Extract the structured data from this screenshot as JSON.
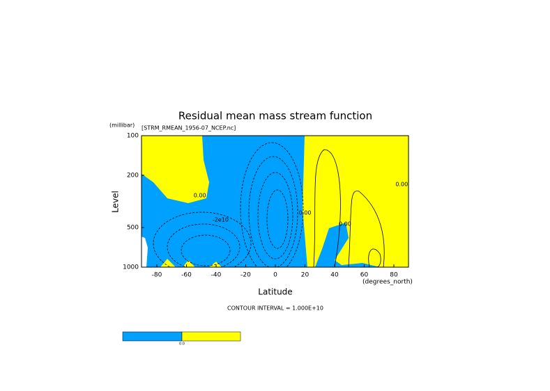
{
  "chart_data": {
    "type": "contour",
    "title": "Residual mean mass stream function",
    "subtitle": "[STRM_RMEAN_1956-07_NCEP.nc]",
    "x_label": "Latitude",
    "x_unit": "(degrees_north)",
    "y_label": "Level",
    "y_unit": "(millibar)",
    "xlim": [
      -90,
      90
    ],
    "xticks": [
      -80,
      -60,
      -40,
      -20,
      0,
      20,
      40,
      60,
      80
    ],
    "ylim": [
      1000,
      100
    ],
    "yticks": [
      100,
      200,
      500,
      1000
    ],
    "log_y": true,
    "note": "CONTOUR INTERVAL = 1.000E+10",
    "negative_color": "#00a0ff",
    "positive_color": "#ffff00",
    "colorbar_label": "0.0",
    "contour_labels": [
      {
        "text": "0.00",
        "x": -51,
        "y": 285
      },
      {
        "text": "-2e10",
        "x": -37,
        "y": 437
      },
      {
        "text": "0.00",
        "x": 20,
        "y": 386
      },
      {
        "text": "0.00",
        "x": 47,
        "y": 470
      },
      {
        "text": "0.00",
        "x": 90,
        "y": 235
      }
    ]
  }
}
